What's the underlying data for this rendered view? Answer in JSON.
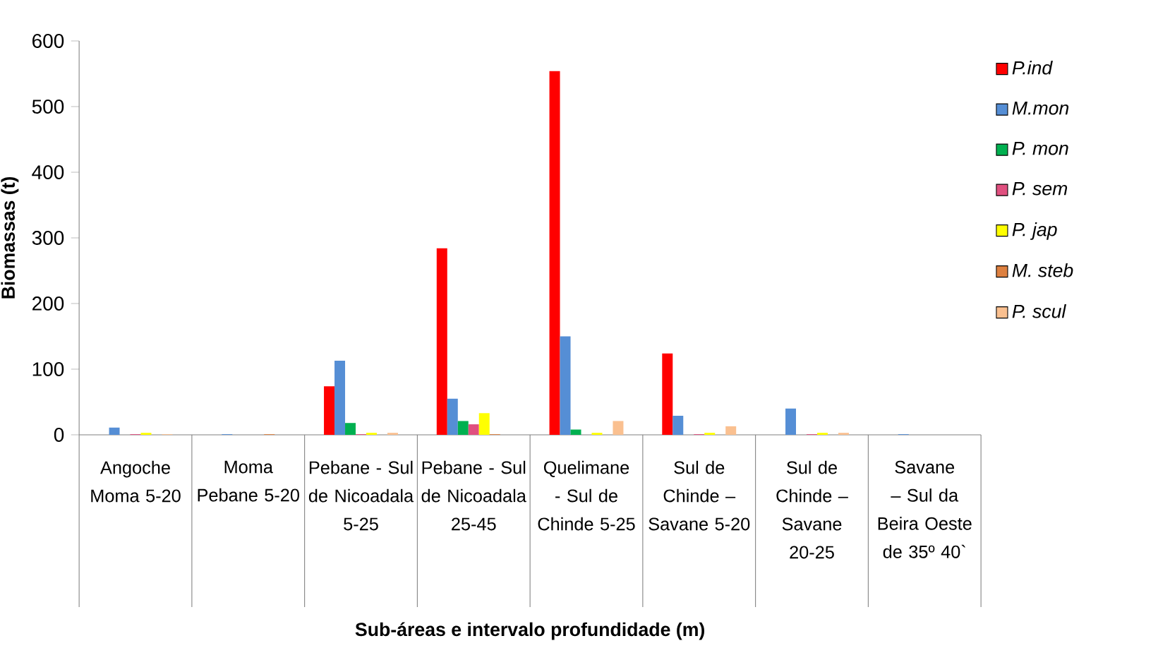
{
  "chart_data": {
    "type": "bar",
    "xlabel": "Sub-áreas e intervalo profundidade (m)",
    "ylabel": "Biomassas (t)",
    "categories": [
      "Angoche Moma 5-20",
      "Moma Pebane 5-20",
      "Pebane - Sul de Nicoadala 5-25",
      "Pebane - Sul de Nicoadala 25-45",
      "Quelimane - Sul de Chinde 5-25",
      "Sul de Chinde – Savane 5-20",
      "Sul de Chinde – Savane 20-25",
      "Savane – Sul da Beira Oeste de 35º 40`"
    ],
    "series": [
      {
        "name": "P.ind",
        "color": "#ff0000",
        "values": [
          0,
          0,
          74,
          284,
          554,
          124,
          0,
          0
        ]
      },
      {
        "name": "M.mon",
        "color": "#558ed5",
        "values": [
          11,
          1,
          113,
          55,
          150,
          29,
          40,
          1
        ]
      },
      {
        "name": "P. mon",
        "color": "#00b050",
        "values": [
          0,
          0,
          18,
          21,
          8,
          0,
          0,
          0
        ]
      },
      {
        "name": "P. sem",
        "color": "#e0507f",
        "values": [
          1,
          0,
          1,
          16,
          0,
          1,
          1,
          0
        ]
      },
      {
        "name": "P. jap",
        "color": "#ffff00",
        "values": [
          3,
          0,
          3,
          33,
          3,
          3,
          3,
          0
        ]
      },
      {
        "name": "M. steb",
        "color": "#dd8040",
        "values": [
          0,
          1,
          0,
          1,
          0,
          0,
          0,
          0
        ]
      },
      {
        "name": "P. scul",
        "color": "#fac090",
        "values": [
          1,
          0,
          3,
          0,
          21,
          13,
          3,
          0
        ]
      }
    ],
    "ylim": [
      0,
      600
    ],
    "yticks": [
      0,
      100,
      200,
      300,
      400,
      500,
      600
    ],
    "legend": "right"
  }
}
